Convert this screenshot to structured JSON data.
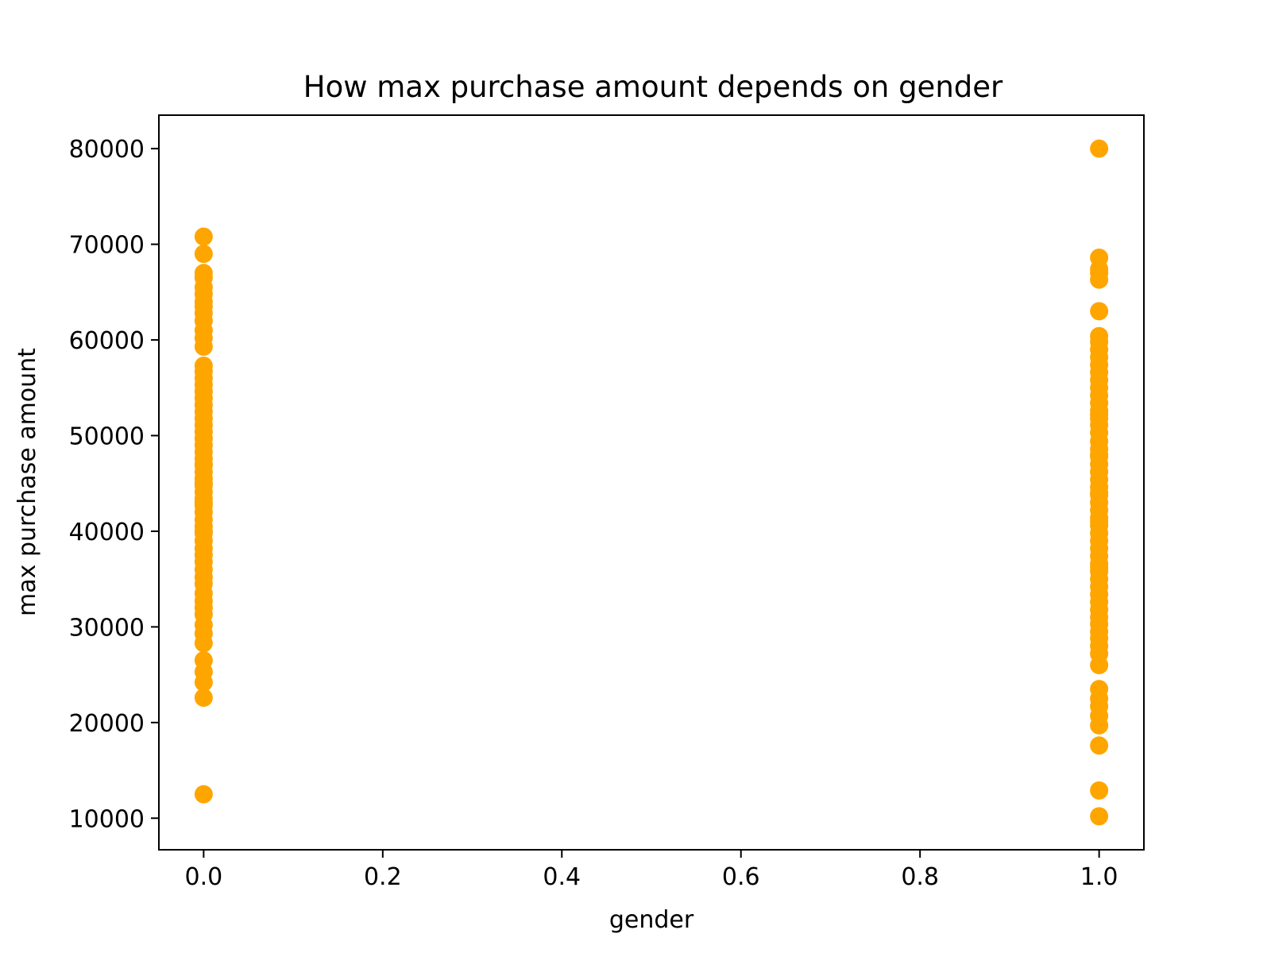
{
  "chart_data": {
    "type": "scatter",
    "title": "How max purchase amount depends on gender",
    "xlabel": "gender",
    "ylabel": "max purchase amount",
    "xlim": [
      -0.05,
      1.05
    ],
    "ylim": [
      6700,
      83500
    ],
    "xticks": [
      0.0,
      0.2,
      0.4,
      0.6,
      0.8,
      1.0
    ],
    "xtick_labels": [
      "0.0",
      "0.2",
      "0.4",
      "0.6",
      "0.8",
      "1.0"
    ],
    "yticks": [
      10000,
      20000,
      30000,
      40000,
      50000,
      60000,
      70000,
      80000
    ],
    "ytick_labels": [
      "10000",
      "20000",
      "30000",
      "40000",
      "50000",
      "60000",
      "70000",
      "80000"
    ],
    "grid": false,
    "color": "#FFA500",
    "series": [
      {
        "x": [
          0,
          0,
          0,
          0,
          0,
          0,
          0,
          0,
          0,
          0,
          0,
          0,
          0,
          0,
          0,
          0,
          0,
          0,
          0,
          0,
          0,
          0,
          0,
          0,
          0,
          0,
          0,
          0,
          0,
          0,
          0,
          0,
          0,
          0,
          0,
          0,
          0,
          0,
          0,
          0,
          0,
          0,
          0,
          0,
          0,
          0,
          0,
          0,
          0,
          0,
          0,
          0,
          0,
          0,
          0,
          0,
          0,
          0,
          0,
          0,
          0,
          0
        ],
        "y": [
          12500,
          22600,
          24200,
          25300,
          26500,
          28300,
          29300,
          30200,
          31300,
          32000,
          32700,
          33500,
          34500,
          35200,
          36000,
          36800,
          37500,
          38200,
          39000,
          39800,
          40500,
          41200,
          42000,
          42700,
          43400,
          44100,
          44800,
          45500,
          46200,
          46900,
          47600,
          48300,
          49000,
          49700,
          50400,
          51100,
          51800,
          52500,
          53200,
          53900,
          54600,
          55300,
          56000,
          56700,
          57300,
          59300,
          60200,
          61000,
          62000,
          62800,
          63500,
          64000,
          64800,
          65500,
          66500,
          67000,
          69000,
          70800,
          40000,
          43000,
          45000,
          47000
        ]
      },
      {
        "x": [
          1,
          1,
          1,
          1,
          1,
          1,
          1,
          1,
          1,
          1,
          1,
          1,
          1,
          1,
          1,
          1,
          1,
          1,
          1,
          1,
          1,
          1,
          1,
          1,
          1,
          1,
          1,
          1,
          1,
          1,
          1,
          1,
          1,
          1,
          1,
          1,
          1,
          1,
          1,
          1,
          1,
          1,
          1,
          1,
          1,
          1,
          1,
          1,
          1,
          1,
          1,
          1,
          1,
          1,
          1,
          1,
          1,
          1,
          1,
          1,
          1,
          1,
          1
        ],
        "y": [
          10200,
          12900,
          17600,
          19700,
          20700,
          21700,
          22500,
          23500,
          26000,
          27200,
          28000,
          28800,
          29500,
          30300,
          31000,
          31800,
          32600,
          33400,
          34200,
          35000,
          35800,
          36600,
          37400,
          38200,
          39000,
          39800,
          40600,
          41400,
          42200,
          43000,
          43800,
          44600,
          45400,
          46200,
          47000,
          47800,
          48600,
          49400,
          50300,
          51100,
          51800,
          52600,
          53400,
          54200,
          55000,
          55800,
          56600,
          57400,
          58200,
          59000,
          59800,
          60400,
          63000,
          66300,
          67000,
          67400,
          68600,
          80000,
          36200,
          41000,
          44000,
          48000,
          52200
        ]
      }
    ]
  }
}
